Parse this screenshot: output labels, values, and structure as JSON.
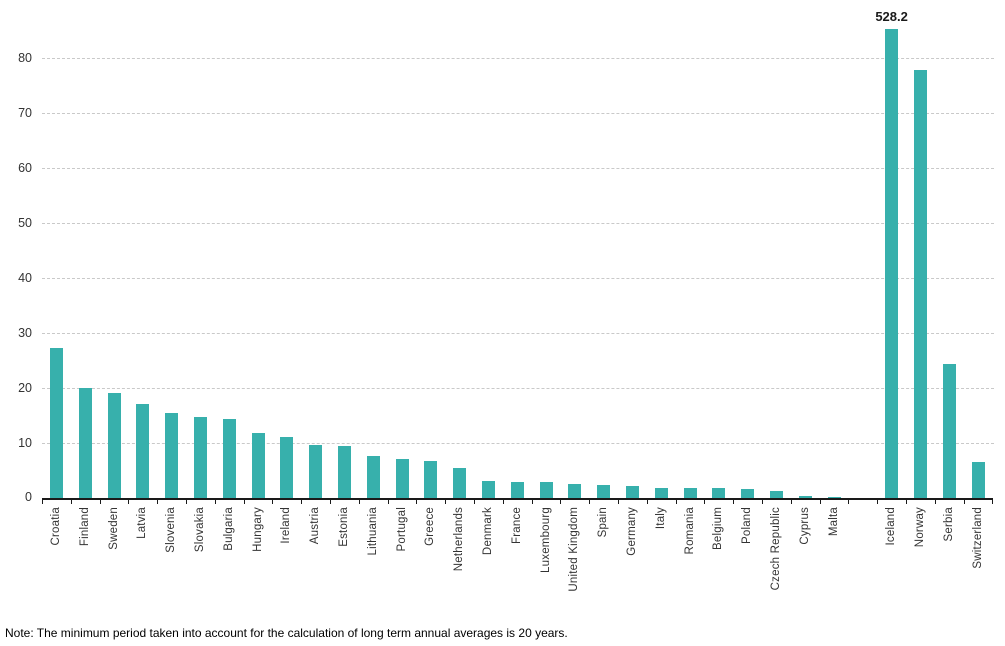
{
  "chart_data": {
    "type": "bar",
    "title": "",
    "xlabel": "",
    "ylabel": "",
    "ylim": [
      0,
      85.3
    ],
    "yticks": [
      0,
      10,
      20,
      30,
      40,
      50,
      60,
      70,
      80
    ],
    "grid": "horizontal-dashed",
    "legend": "none",
    "bar_color": "#37b0ac",
    "gridline_color": "#c9c9c9",
    "axis_color": "#1a1a1a",
    "text_color": "#333333",
    "categories": [
      "Croatia",
      "Finland",
      "Sweden",
      "Latvia",
      "Slovenia",
      "Slovakia",
      "Bulgaria",
      "Hungary",
      "Ireland",
      "Austria",
      "Estonia",
      "Lithuania",
      "Portugal",
      "Greece",
      "Netherlands",
      "Denmark",
      "France",
      "Luxembourg",
      "United Kingdom",
      "Spain",
      "Germany",
      "Italy",
      "Romania",
      "Belgium",
      "Poland",
      "Czech Republic",
      "Cyprus",
      "Malta",
      "",
      "Iceland",
      "Norway",
      "Serbia",
      "Switzerland"
    ],
    "values": [
      27.3,
      20.0,
      19.0,
      17.0,
      15.4,
      14.7,
      14.3,
      11.8,
      11.1,
      9.7,
      9.4,
      7.6,
      7.0,
      6.8,
      5.4,
      3.0,
      2.9,
      2.9,
      2.5,
      2.4,
      2.2,
      1.9,
      1.9,
      1.8,
      1.6,
      1.3,
      0.4,
      0.2,
      null,
      528.2,
      77.8,
      24.4,
      6.5
    ],
    "annotations": [
      {
        "category_index": 29,
        "text": "528.2",
        "note": "bar clipped at top of plot area"
      }
    ],
    "note": "Note: The minimum period taken into account for the calculation of long term annual averages is 20 years."
  }
}
